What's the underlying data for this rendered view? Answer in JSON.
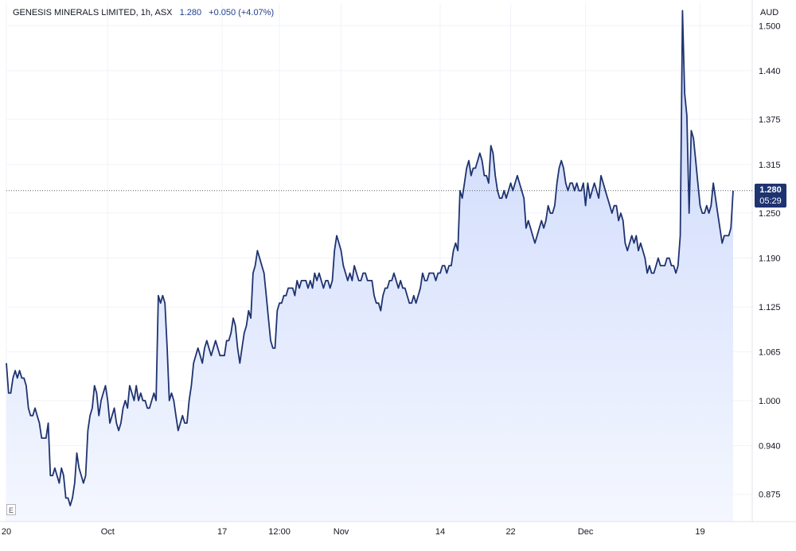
{
  "header": {
    "symbol": "GENESIS MINERALS LIMITED, 1h, ASX",
    "price": "1.280",
    "change": "+0.050 (+4.07%)"
  },
  "currency": "AUD",
  "last_price": {
    "price": "1.280",
    "countdown": "05:29"
  },
  "colors": {
    "line": "#1e3370",
    "area_top": "#c9d6fb",
    "area_bottom": "#f4f7ff",
    "grid": "#f0f3fa",
    "price_tag_bg": "#1e3370"
  },
  "chart_data": {
    "type": "area",
    "ylabel": "AUD",
    "ylim": [
      0.845,
      1.53
    ],
    "y_ticks": [
      "0.875",
      "0.940",
      "1.000",
      "1.065",
      "1.125",
      "1.190",
      "1.250",
      "1.315",
      "1.375",
      "1.440",
      "1.500"
    ],
    "x_ticks": [
      {
        "label": "20",
        "i": 0
      },
      {
        "label": "Oct",
        "i": 46
      },
      {
        "label": "17",
        "i": 98
      },
      {
        "label": "12:00",
        "i": 124
      },
      {
        "label": "Nov",
        "i": 152
      },
      {
        "label": "14",
        "i": 197
      },
      {
        "label": "22",
        "i": 229
      },
      {
        "label": "Dec",
        "i": 263
      },
      {
        "label": "19",
        "i": 315
      }
    ],
    "grid": true,
    "series": [
      {
        "values": [
          1.05,
          1.01,
          1.01,
          1.03,
          1.04,
          1.03,
          1.04,
          1.03,
          1.03,
          1.02,
          0.99,
          0.98,
          0.98,
          0.99,
          0.98,
          0.97,
          0.95,
          0.95,
          0.95,
          0.97,
          0.9,
          0.9,
          0.91,
          0.9,
          0.89,
          0.91,
          0.9,
          0.87,
          0.87,
          0.86,
          0.87,
          0.89,
          0.93,
          0.91,
          0.9,
          0.89,
          0.9,
          0.96,
          0.98,
          0.99,
          1.02,
          1.01,
          0.98,
          1.0,
          1.01,
          1.02,
          1.0,
          0.97,
          0.98,
          0.99,
          0.97,
          0.96,
          0.97,
          0.99,
          1.0,
          0.99,
          1.02,
          1.01,
          1.0,
          1.02,
          1.0,
          1.01,
          1.0,
          1.0,
          0.99,
          0.99,
          1.0,
          1.01,
          1.0,
          1.14,
          1.13,
          1.14,
          1.13,
          1.07,
          1.0,
          1.01,
          1.0,
          0.98,
          0.96,
          0.97,
          0.98,
          0.97,
          0.97,
          1.0,
          1.02,
          1.05,
          1.06,
          1.07,
          1.06,
          1.05,
          1.07,
          1.08,
          1.07,
          1.06,
          1.07,
          1.08,
          1.07,
          1.06,
          1.06,
          1.06,
          1.08,
          1.08,
          1.09,
          1.11,
          1.1,
          1.07,
          1.05,
          1.07,
          1.09,
          1.1,
          1.12,
          1.11,
          1.17,
          1.18,
          1.2,
          1.19,
          1.18,
          1.17,
          1.14,
          1.11,
          1.08,
          1.07,
          1.07,
          1.12,
          1.13,
          1.13,
          1.14,
          1.14,
          1.15,
          1.15,
          1.15,
          1.14,
          1.16,
          1.15,
          1.16,
          1.16,
          1.16,
          1.15,
          1.16,
          1.15,
          1.17,
          1.16,
          1.17,
          1.16,
          1.15,
          1.16,
          1.16,
          1.15,
          1.16,
          1.2,
          1.22,
          1.21,
          1.2,
          1.18,
          1.17,
          1.16,
          1.17,
          1.16,
          1.18,
          1.17,
          1.16,
          1.16,
          1.17,
          1.17,
          1.16,
          1.16,
          1.16,
          1.14,
          1.13,
          1.13,
          1.12,
          1.14,
          1.15,
          1.15,
          1.16,
          1.16,
          1.17,
          1.16,
          1.15,
          1.16,
          1.15,
          1.15,
          1.14,
          1.13,
          1.13,
          1.14,
          1.13,
          1.14,
          1.15,
          1.17,
          1.16,
          1.16,
          1.17,
          1.17,
          1.17,
          1.16,
          1.17,
          1.17,
          1.18,
          1.18,
          1.17,
          1.18,
          1.18,
          1.2,
          1.21,
          1.2,
          1.28,
          1.27,
          1.29,
          1.31,
          1.32,
          1.3,
          1.31,
          1.31,
          1.32,
          1.33,
          1.32,
          1.3,
          1.3,
          1.29,
          1.34,
          1.33,
          1.3,
          1.28,
          1.27,
          1.27,
          1.28,
          1.27,
          1.28,
          1.29,
          1.28,
          1.29,
          1.3,
          1.29,
          1.28,
          1.27,
          1.23,
          1.24,
          1.23,
          1.22,
          1.21,
          1.22,
          1.23,
          1.24,
          1.23,
          1.24,
          1.26,
          1.25,
          1.25,
          1.26,
          1.29,
          1.31,
          1.32,
          1.31,
          1.29,
          1.28,
          1.29,
          1.29,
          1.28,
          1.29,
          1.28,
          1.28,
          1.29,
          1.26,
          1.29,
          1.27,
          1.28,
          1.29,
          1.28,
          1.27,
          1.3,
          1.29,
          1.28,
          1.27,
          1.26,
          1.25,
          1.26,
          1.26,
          1.24,
          1.25,
          1.24,
          1.21,
          1.2,
          1.21,
          1.22,
          1.21,
          1.22,
          1.2,
          1.21,
          1.2,
          1.19,
          1.17,
          1.18,
          1.17,
          1.17,
          1.18,
          1.19,
          1.18,
          1.18,
          1.18,
          1.19,
          1.19,
          1.18,
          1.18,
          1.17,
          1.18,
          1.22,
          1.52,
          1.41,
          1.38,
          1.25,
          1.36,
          1.35,
          1.32,
          1.29,
          1.26,
          1.25,
          1.25,
          1.26,
          1.25,
          1.26,
          1.29,
          1.27,
          1.25,
          1.23,
          1.21,
          1.22,
          1.22,
          1.22,
          1.23,
          1.28
        ]
      }
    ]
  }
}
